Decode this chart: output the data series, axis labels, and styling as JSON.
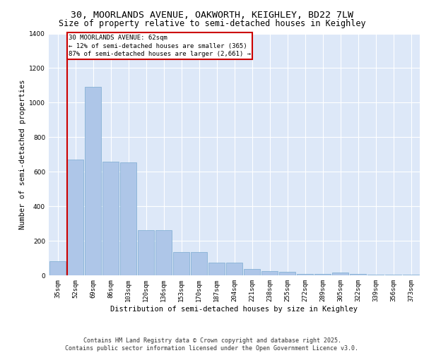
{
  "title_line1": "30, MOORLANDS AVENUE, OAKWORTH, KEIGHLEY, BD22 7LW",
  "title_line2": "Size of property relative to semi-detached houses in Keighley",
  "xlabel": "Distribution of semi-detached houses by size in Keighley",
  "ylabel": "Number of semi-detached properties",
  "categories": [
    "35sqm",
    "52sqm",
    "69sqm",
    "86sqm",
    "103sqm",
    "120sqm",
    "136sqm",
    "153sqm",
    "170sqm",
    "187sqm",
    "204sqm",
    "221sqm",
    "238sqm",
    "255sqm",
    "272sqm",
    "289sqm",
    "305sqm",
    "322sqm",
    "339sqm",
    "356sqm",
    "373sqm"
  ],
  "values": [
    80,
    670,
    1090,
    660,
    655,
    260,
    260,
    135,
    135,
    75,
    75,
    35,
    25,
    20,
    10,
    10,
    15,
    10,
    5,
    5,
    5
  ],
  "bar_color": "#aec6e8",
  "bar_edge_color": "#7aaad0",
  "vline_color": "#cc0000",
  "annotation_title": "30 MOORLANDS AVENUE: 62sqm",
  "annotation_line2": "← 12% of semi-detached houses are smaller (365)",
  "annotation_line3": "87% of semi-detached houses are larger (2,661) →",
  "annotation_box_color": "#cc0000",
  "ylim": [
    0,
    1400
  ],
  "yticks": [
    0,
    200,
    400,
    600,
    800,
    1000,
    1200,
    1400
  ],
  "background_color": "#dde8f8",
  "footer_line1": "Contains HM Land Registry data © Crown copyright and database right 2025.",
  "footer_line2": "Contains public sector information licensed under the Open Government Licence v3.0.",
  "title_fontsize": 9.5,
  "title2_fontsize": 8.5,
  "axis_label_fontsize": 7.5,
  "tick_fontsize": 6.5,
  "annotation_fontsize": 6.5,
  "footer_fontsize": 6.0
}
